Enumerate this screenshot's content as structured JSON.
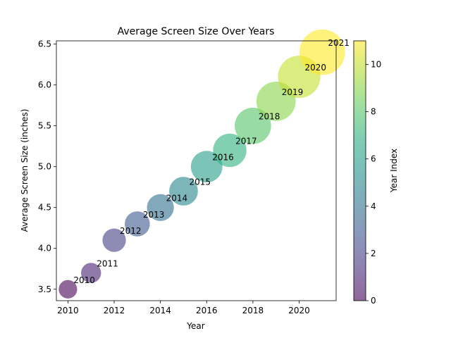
{
  "chart_data": {
    "type": "scatter",
    "title": "Average Screen Size Over Years",
    "xlabel": "Year",
    "ylabel": "Average Screen Size (inches)",
    "xlim": [
      2009.5,
      2021.6
    ],
    "ylim": [
      3.36,
      6.54
    ],
    "xticks": [
      2010,
      2012,
      2014,
      2016,
      2018,
      2020
    ],
    "yticks": [
      3.5,
      4.0,
      4.5,
      5.0,
      5.5,
      6.0,
      6.5
    ],
    "grid": false,
    "points": [
      {
        "x": 2010,
        "y": 3.5,
        "label": "2010",
        "index": 0
      },
      {
        "x": 2011,
        "y": 3.7,
        "label": "2011",
        "index": 1
      },
      {
        "x": 2012,
        "y": 4.1,
        "label": "2012",
        "index": 2
      },
      {
        "x": 2013,
        "y": 4.3,
        "label": "2013",
        "index": 3
      },
      {
        "x": 2014,
        "y": 4.5,
        "label": "2014",
        "index": 4
      },
      {
        "x": 2015,
        "y": 4.7,
        "label": "2015",
        "index": 5
      },
      {
        "x": 2016,
        "y": 5.0,
        "label": "2016",
        "index": 6
      },
      {
        "x": 2017,
        "y": 5.2,
        "label": "2017",
        "index": 7
      },
      {
        "x": 2018,
        "y": 5.5,
        "label": "2018",
        "index": 8
      },
      {
        "x": 2019,
        "y": 5.8,
        "label": "2019",
        "index": 9
      },
      {
        "x": 2020,
        "y": 6.1,
        "label": "2020",
        "index": 10
      },
      {
        "x": 2021,
        "y": 6.4,
        "label": "2021",
        "index": 11
      }
    ],
    "colorbar": {
      "label": "Year Index",
      "min": 0,
      "max": 11,
      "ticks": [
        0,
        2,
        4,
        6,
        8,
        10
      ],
      "colormap": "viridis",
      "alpha": 0.6
    }
  }
}
